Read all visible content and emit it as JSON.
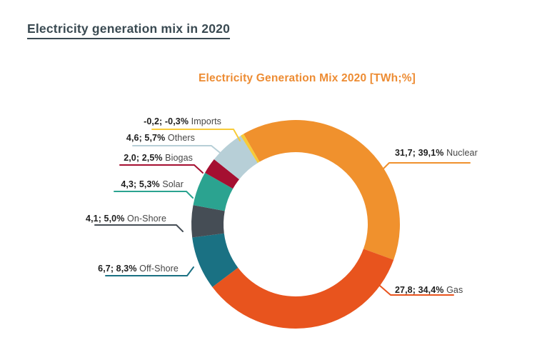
{
  "page": {
    "heading": "Electricity generation mix in 2020",
    "heading_color": "#3A4A52",
    "background_color": "#FFFFFF"
  },
  "chart_data": {
    "type": "pie",
    "subtype": "donut",
    "title": "Electricity Generation Mix 2020 [TWh;%]",
    "title_color": "#ED8C33",
    "units": "TWh;%",
    "legend_position": "callout-labels",
    "start_angle_deg": -30,
    "inner_radius_ratio": 0.69,
    "segments": [
      {
        "name": "Nuclear",
        "twh": 31.7,
        "pct": 39.1,
        "display": "31,7; 39,1%",
        "color": "#F0912D",
        "side": "right"
      },
      {
        "name": "Gas",
        "twh": 27.8,
        "pct": 34.4,
        "display": "27,8; 34,4%",
        "color": "#E8541E",
        "side": "right"
      },
      {
        "name": "Off-Shore",
        "twh": 6.7,
        "pct": 8.3,
        "display": "6,7; 8,3%",
        "color": "#1A7183",
        "side": "left"
      },
      {
        "name": "On-Shore",
        "twh": 4.1,
        "pct": 5.0,
        "display": "4,1; 5,0%",
        "color": "#454D55",
        "side": "left"
      },
      {
        "name": "Solar",
        "twh": 4.3,
        "pct": 5.3,
        "display": "4,3; 5,3%",
        "color": "#2BA390",
        "side": "left"
      },
      {
        "name": "Biogas",
        "twh": 2.0,
        "pct": 2.5,
        "display": "2,0; 2,5%",
        "color": "#A50F31",
        "side": "left"
      },
      {
        "name": "Others",
        "twh": 4.6,
        "pct": 5.7,
        "display": "4,6; 5,7%",
        "color": "#B7CFD7",
        "side": "left"
      },
      {
        "name": "Imports",
        "twh": -0.2,
        "pct": -0.3,
        "display": "-0,2; -0,3%",
        "color": "#F7CB38",
        "side": "left"
      }
    ]
  }
}
